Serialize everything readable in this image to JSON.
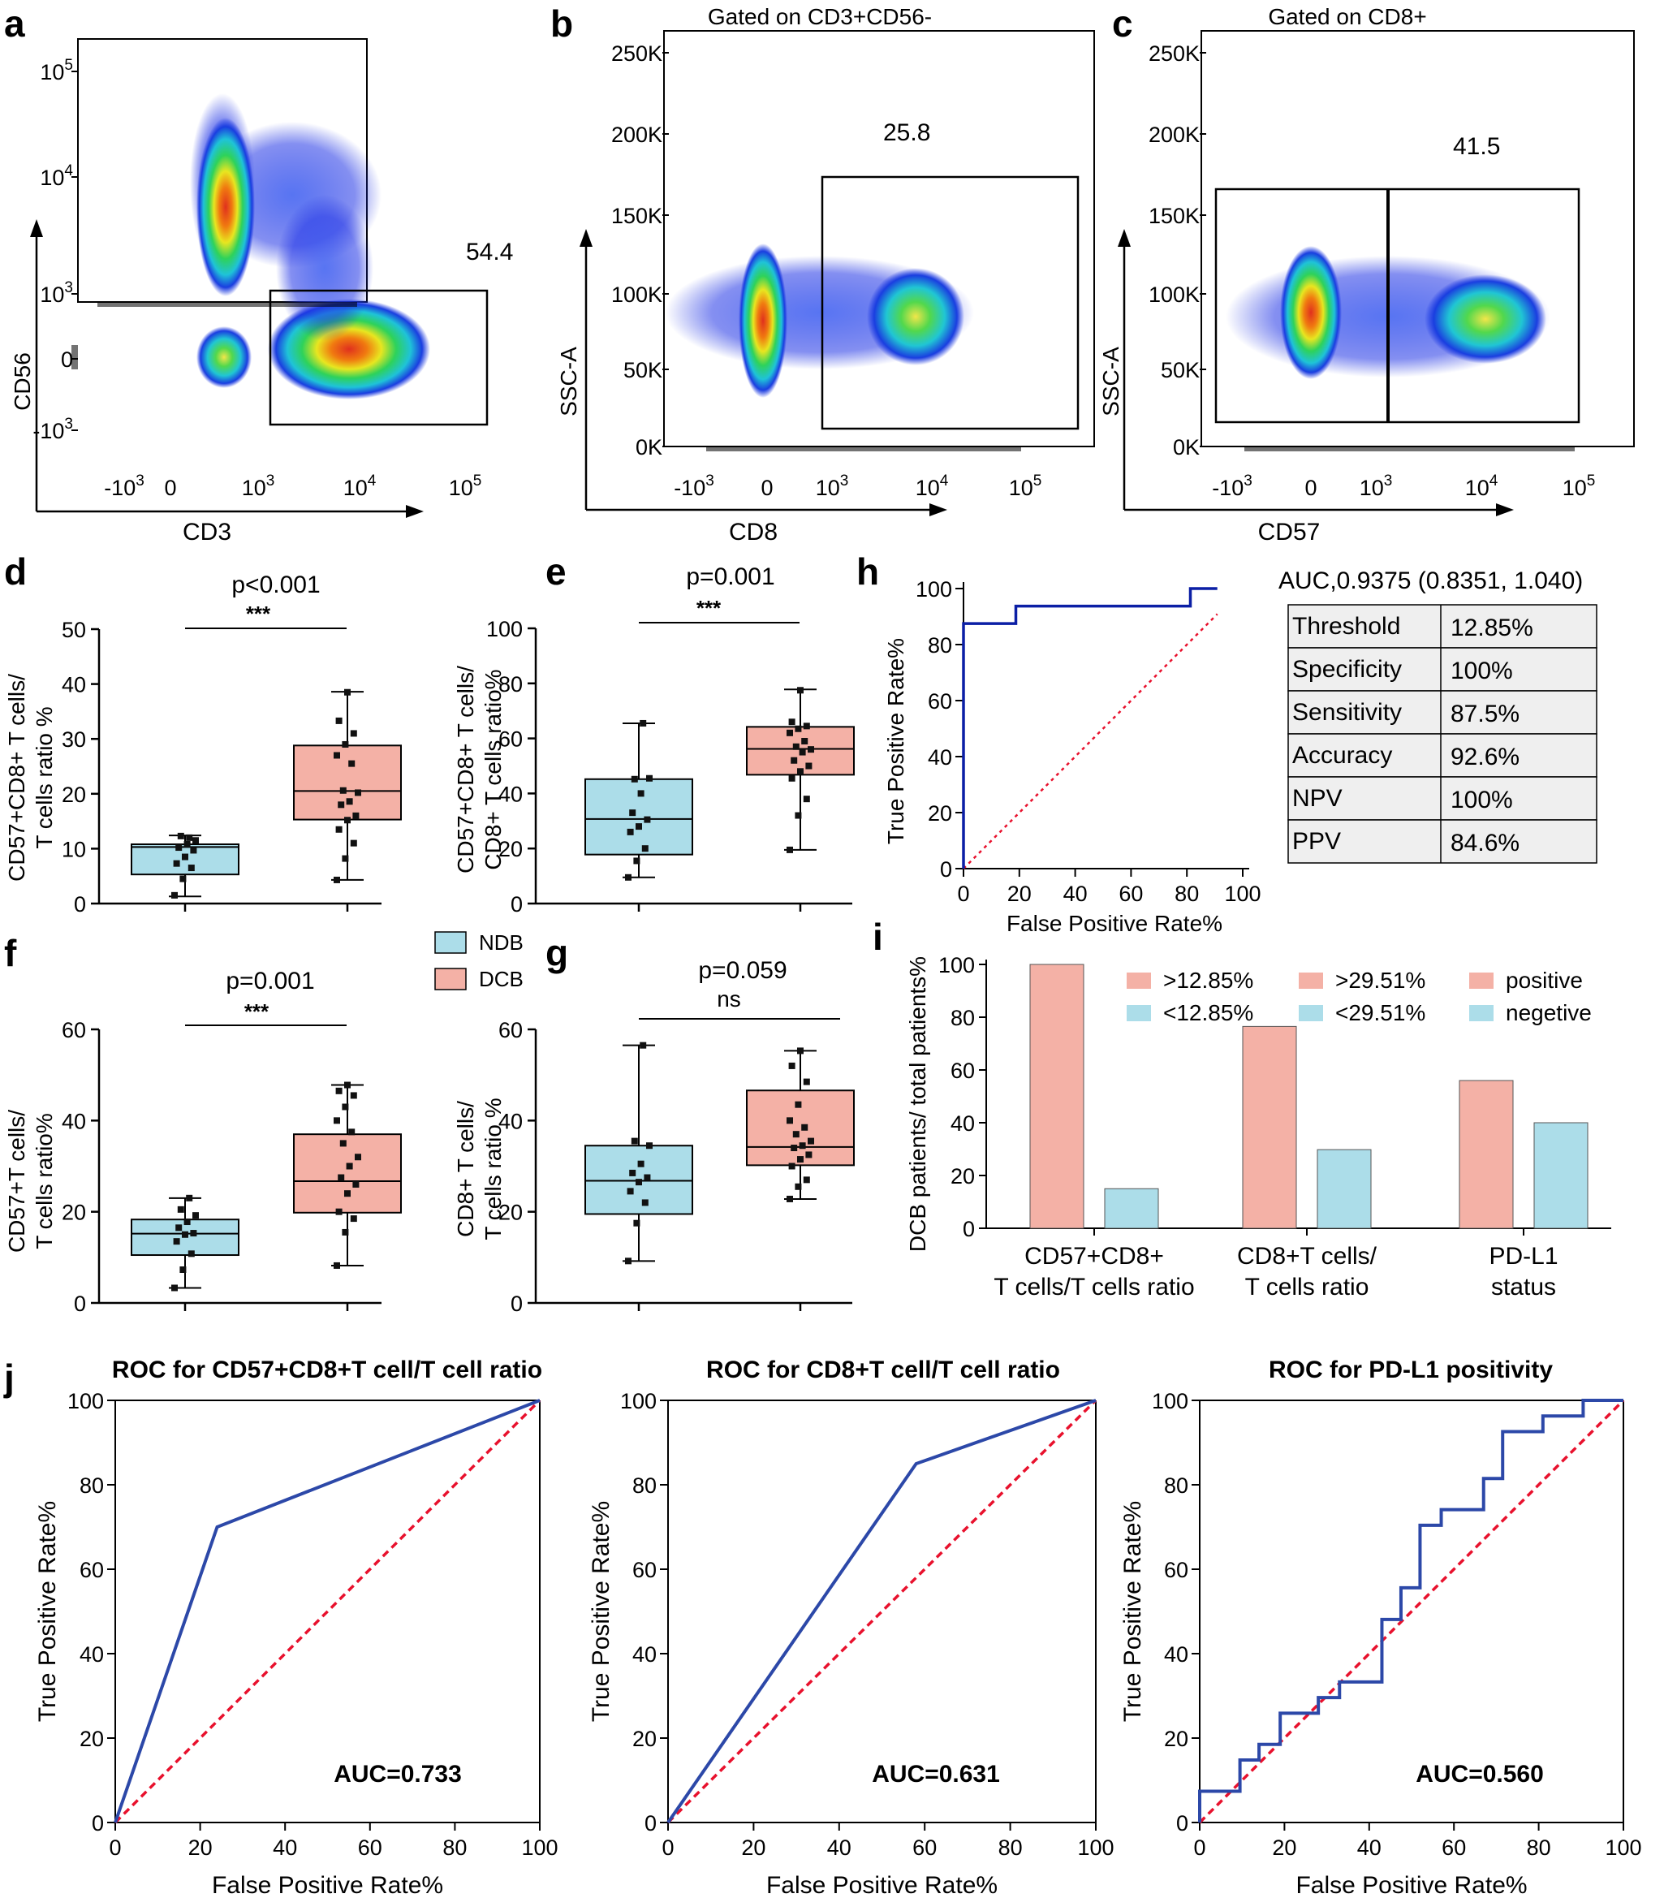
{
  "panels": {
    "a": "a",
    "b": "b",
    "c": "c",
    "d": "d",
    "e": "e",
    "f": "f",
    "g": "g",
    "h": "h",
    "i": "i",
    "j": "j"
  },
  "colors": {
    "ndb": "#acdde9",
    "dcb": "#f4b1a6",
    "roc_line": "#2c48a8",
    "ref_line": "#e8112d",
    "h_line": "#0b1fa5"
  },
  "flow": {
    "a": {
      "title": "",
      "xlabel": "CD3",
      "ylabel": "CD56",
      "gate_value": "54.4",
      "yticks": [
        {
          "b": "10",
          "e": "5"
        },
        {
          "b": "10",
          "e": "4"
        },
        {
          "b": "10",
          "e": "3"
        },
        {
          "b": "0",
          "e": ""
        },
        {
          "b": "-10",
          "e": "3"
        }
      ],
      "xticks": [
        {
          "b": "-10",
          "e": "3"
        },
        {
          "b": "0",
          "e": ""
        },
        {
          "b": "10",
          "e": "3"
        },
        {
          "b": "10",
          "e": "4"
        },
        {
          "b": "10",
          "e": "5"
        }
      ]
    },
    "b": {
      "title": "Gated on CD3+CD56-",
      "xlabel": "CD8",
      "ylabel": "SSC-A",
      "gate_value": "25.8",
      "yticks": [
        "250K",
        "200K",
        "150K",
        "100K",
        "50K",
        "0K"
      ],
      "xticks": [
        {
          "b": "-10",
          "e": "3"
        },
        {
          "b": "0",
          "e": ""
        },
        {
          "b": "10",
          "e": "3"
        },
        {
          "b": "10",
          "e": "4"
        },
        {
          "b": "10",
          "e": "5"
        }
      ]
    },
    "c": {
      "title": "Gated on CD8+",
      "xlabel": "CD57",
      "ylabel": "SSC-A",
      "gate_value": "41.5",
      "yticks": [
        "250K",
        "200K",
        "150K",
        "100K",
        "50K",
        "0K"
      ],
      "xticks": [
        {
          "b": "-10",
          "e": "3"
        },
        {
          "b": "0",
          "e": ""
        },
        {
          "b": "10",
          "e": "3"
        },
        {
          "b": "10",
          "e": "4"
        },
        {
          "b": "10",
          "e": "5"
        }
      ]
    }
  },
  "legend": {
    "ndb": "NDB",
    "dcb": "DCB"
  },
  "box_d": {
    "ylabel_1": "CD57+CD8+ T cells/",
    "ylabel_2": "T cells ratio %",
    "p": "p<0.001",
    "sig": "***"
  },
  "box_e": {
    "ylabel_1": "CD57+CD8+ T cells/",
    "ylabel_2": "CD8+ T cells ratio%",
    "p": "p=0.001",
    "sig": "***"
  },
  "box_f": {
    "ylabel_1": "CD57+T cells/",
    "ylabel_2": "T cells ratio%",
    "p": "p=0.001",
    "sig": "***"
  },
  "box_g": {
    "ylabel_1": "CD8+ T cells/",
    "ylabel_2": "T cells ratio %",
    "p": "p=0.059",
    "sig": "ns"
  },
  "roc_h": {
    "auc": "AUC,0.9375 (0.8351, 1.040)",
    "xlabel": "False Positive Rate%",
    "ylabel": "True Positive Rate%",
    "table": [
      {
        "k": "Threshold",
        "v": "12.85%"
      },
      {
        "k": "Specificity",
        "v": "100%"
      },
      {
        "k": "Sensitivity",
        "v": "87.5%"
      },
      {
        "k": "Accuracy",
        "v": "92.6%"
      },
      {
        "k": "NPV",
        "v": "100%"
      },
      {
        "k": "PPV",
        "v": "84.6%"
      }
    ]
  },
  "bar_i": {
    "ylabel": "DCB patients/ total patients%",
    "legend": [
      ">12.85%",
      ">29.51%",
      "positive",
      "<12.85%",
      "<29.51%",
      "negetive"
    ],
    "groups": [
      [
        "CD57+CD8+",
        "T cells/T cells ratio"
      ],
      [
        "CD8+T cells/",
        "T cells ratio"
      ],
      [
        "PD-L1",
        "status"
      ]
    ]
  },
  "roc_j": [
    {
      "title": "ROC for CD57+CD8+T cell/T cell ratio",
      "auc": "AUC=0.733",
      "xlabel": "False Positive Rate%",
      "ylabel": "True Positive Rate%"
    },
    {
      "title": "ROC for CD8+T cell/T cell ratio",
      "auc": "AUC=0.631",
      "xlabel": "False Positive Rate%",
      "ylabel": "True Positive Rate%"
    },
    {
      "title": "ROC for PD-L1 positivity",
      "auc": "AUC=0.560",
      "xlabel": "False Positive Rate%",
      "ylabel": "True Positive Rate%"
    }
  ],
  "chart_data": [
    {
      "type": "scatter",
      "id": "a",
      "title": "",
      "xlabel": "CD3",
      "ylabel": "CD56",
      "gate_percent": 54.4,
      "populations": [
        {
          "name": "CD3-CD56+",
          "x_log": 0.25,
          "y_log": 3.6
        },
        {
          "name": "CD3-CD56-",
          "x_log": 0.25,
          "y_log": 0
        },
        {
          "name": "CD3+CD56-",
          "x_log": 3.8,
          "y_log": 0
        }
      ]
    },
    {
      "type": "scatter",
      "id": "b",
      "title": "Gated on CD3+CD56-",
      "xlabel": "CD8",
      "ylabel": "SSC-A",
      "ylim": [
        0,
        250000
      ],
      "gate_percent": 25.8,
      "populations": [
        {
          "name": "CD8-",
          "x_log": 0,
          "y": 70000
        },
        {
          "name": "CD8+",
          "x_log": 3.9,
          "y": 80000
        }
      ]
    },
    {
      "type": "scatter",
      "id": "c",
      "title": "Gated on CD8+",
      "xlabel": "CD57",
      "ylabel": "SSC-A",
      "ylim": [
        0,
        250000
      ],
      "gate_percent": 41.5,
      "populations": [
        {
          "name": "CD57-",
          "x_log": 0,
          "y": 80000
        },
        {
          "name": "CD57+",
          "x_log": 4.2,
          "y": 80000
        }
      ]
    },
    {
      "type": "box",
      "id": "d",
      "ylabel": "CD57+CD8+ T cells/ T cells ratio %",
      "ylim": [
        0,
        50
      ],
      "yticks": [
        0,
        10,
        20,
        30,
        40,
        50
      ],
      "p": "p<0.001",
      "sig": "***",
      "series": [
        {
          "name": "NDB",
          "min": 1.3,
          "q1": 5.3,
          "median": 10.3,
          "q3": 10.8,
          "max": 12.4,
          "points": [
            1.5,
            4.5,
            6.5,
            7.3,
            8.5,
            9.7,
            10.2,
            10.8,
            11.5,
            12.3,
            12.0
          ]
        },
        {
          "name": "DCB",
          "min": 4.3,
          "q1": 15.3,
          "median": 20.5,
          "q3": 28.8,
          "max": 38.6,
          "points": [
            4.3,
            8.2,
            11,
            13.5,
            15.2,
            16,
            18,
            18.6,
            20.2,
            20.6,
            25.5,
            27,
            29,
            31,
            33.3,
            38.5
          ]
        }
      ]
    },
    {
      "type": "box",
      "id": "e",
      "ylabel": "CD57+CD8+ T cells/ CD8+ T cells ratio%",
      "ylim": [
        0,
        100
      ],
      "yticks": [
        0,
        20,
        40,
        60,
        80,
        100
      ],
      "p": "p=0.001",
      "sig": "***",
      "series": [
        {
          "name": "NDB",
          "min": 9.5,
          "q1": 17.8,
          "median": 30.7,
          "q3": 45.2,
          "max": 65.5,
          "points": [
            9.5,
            15.5,
            20,
            26,
            28,
            30.5,
            33,
            40,
            45.5,
            45.2,
            65.5
          ]
        },
        {
          "name": "DCB",
          "min": 19.5,
          "q1": 46.8,
          "median": 56.2,
          "q3": 64.2,
          "max": 77.8,
          "points": [
            19.5,
            32,
            38,
            45.5,
            48,
            50,
            52,
            55,
            56,
            57,
            59,
            62,
            63.5,
            64.5,
            66,
            77.5
          ]
        }
      ]
    },
    {
      "type": "box",
      "id": "f",
      "ylabel": "CD57+T cells/ T cells ratio%",
      "ylim": [
        0,
        60
      ],
      "yticks": [
        0,
        20,
        40,
        60
      ],
      "p": "p=0.001",
      "sig": "***",
      "series": [
        {
          "name": "NDB",
          "min": 3.3,
          "q1": 10.5,
          "median": 15.2,
          "q3": 18.3,
          "max": 23,
          "points": [
            3.3,
            7.3,
            10.8,
            13.5,
            15,
            15.3,
            16.5,
            17.8,
            19.2,
            20.5,
            23
          ]
        },
        {
          "name": "DCB",
          "min": 8.2,
          "q1": 19.8,
          "median": 26.7,
          "q3": 37,
          "max": 47.8,
          "points": [
            8.2,
            15.5,
            18.5,
            20,
            24,
            26,
            27.5,
            30,
            32,
            35,
            37.5,
            40,
            43,
            45.5,
            46.5,
            47.8
          ]
        }
      ]
    },
    {
      "type": "box",
      "id": "g",
      "ylabel": "CD8+ T cells/ T cells ratio %",
      "ylim": [
        0,
        60
      ],
      "yticks": [
        0,
        20,
        40,
        60
      ],
      "p": "p=0.059",
      "sig": "ns",
      "series": [
        {
          "name": "NDB",
          "min": 9.2,
          "q1": 19.5,
          "median": 26.8,
          "q3": 34.5,
          "max": 56.5,
          "points": [
            9.2,
            17.5,
            22,
            24.5,
            26.5,
            27.5,
            28.5,
            30.5,
            34.5,
            35.5,
            56.5
          ]
        },
        {
          "name": "DCB",
          "min": 22.8,
          "q1": 30.2,
          "median": 34.2,
          "q3": 46.6,
          "max": 55.3,
          "points": [
            22.8,
            25.5,
            27,
            30,
            31.5,
            32.5,
            34,
            34.5,
            35.5,
            37,
            38.5,
            40,
            43.5,
            48.5,
            52,
            55.3
          ]
        }
      ]
    },
    {
      "type": "line",
      "id": "h",
      "xlabel": "False Positive Rate%",
      "ylabel": "True Positive Rate%",
      "xlim": [
        0,
        100
      ],
      "ylim": [
        0,
        100
      ],
      "series": [
        {
          "name": "ROC",
          "x": [
            0,
            0,
            0,
            18.75,
            18.75,
            81.25,
            81.25,
            90.9
          ],
          "y": [
            0,
            6.25,
            87.5,
            87.5,
            93.75,
            93.75,
            100,
            100
          ]
        },
        {
          "name": "reference",
          "x": [
            0,
            90.9
          ],
          "y": [
            0,
            90.9
          ]
        }
      ],
      "auc": 0.9375,
      "ci": [
        0.8351,
        1.04
      ]
    },
    {
      "type": "bar",
      "id": "i",
      "ylabel": "DCB patients/ total patients%",
      "ylim": [
        0,
        100
      ],
      "categories": [
        "CD57+CD8+ T cells/T cells ratio",
        "CD8+T cells/ T cells ratio",
        "PD-L1 status"
      ],
      "series": [
        {
          "name": "high/positive",
          "values": [
            100,
            76.5,
            56
          ]
        },
        {
          "name": "low/negative",
          "values": [
            15,
            29.8,
            40
          ]
        }
      ]
    },
    {
      "type": "line",
      "id": "j1",
      "title": "ROC for CD57+CD8+T cell/T cell ratio",
      "xlabel": "False Positive Rate%",
      "ylabel": "True Positive Rate%",
      "xlim": [
        0,
        100
      ],
      "ylim": [
        0,
        100
      ],
      "series": [
        {
          "name": "ROC",
          "x": [
            0,
            24,
            100
          ],
          "y": [
            0,
            70,
            100
          ]
        },
        {
          "name": "reference",
          "x": [
            0,
            100
          ],
          "y": [
            0,
            100
          ]
        }
      ],
      "auc": 0.733
    },
    {
      "type": "line",
      "id": "j2",
      "title": "ROC for CD8+T cell/T cell ratio",
      "xlabel": "False Positive Rate%",
      "ylabel": "True Positive Rate%",
      "xlim": [
        0,
        100
      ],
      "ylim": [
        0,
        100
      ],
      "series": [
        {
          "name": "ROC",
          "x": [
            0,
            58,
            100
          ],
          "y": [
            0,
            85,
            100
          ]
        },
        {
          "name": "reference",
          "x": [
            0,
            100
          ],
          "y": [
            0,
            100
          ]
        }
      ],
      "auc": 0.631
    },
    {
      "type": "line",
      "id": "j3",
      "title": "ROC for PD-L1 positivity",
      "xlabel": "False Positive Rate%",
      "ylabel": "True Positive Rate%",
      "xlim": [
        0,
        100
      ],
      "ylim": [
        0,
        100
      ],
      "series": [
        {
          "name": "ROC",
          "x": [
            0,
            0,
            9.5,
            9.5,
            14,
            14,
            19,
            19,
            28,
            28,
            33,
            33,
            43,
            43,
            47.5,
            47.5,
            52,
            52,
            57,
            57,
            67,
            67,
            71.5,
            71.5,
            81,
            81,
            90.5,
            90.5,
            100
          ],
          "y": [
            0,
            7.4,
            7.4,
            14.8,
            14.8,
            18.5,
            18.5,
            25.9,
            25.9,
            29.6,
            29.6,
            33.3,
            33.3,
            48.1,
            48.1,
            55.6,
            55.6,
            70.4,
            70.4,
            74.1,
            74.1,
            81.5,
            81.5,
            92.6,
            92.6,
            96.3,
            96.3,
            100,
            100
          ]
        },
        {
          "name": "reference",
          "x": [
            0,
            100
          ],
          "y": [
            0,
            100
          ]
        }
      ],
      "auc": 0.56
    }
  ]
}
